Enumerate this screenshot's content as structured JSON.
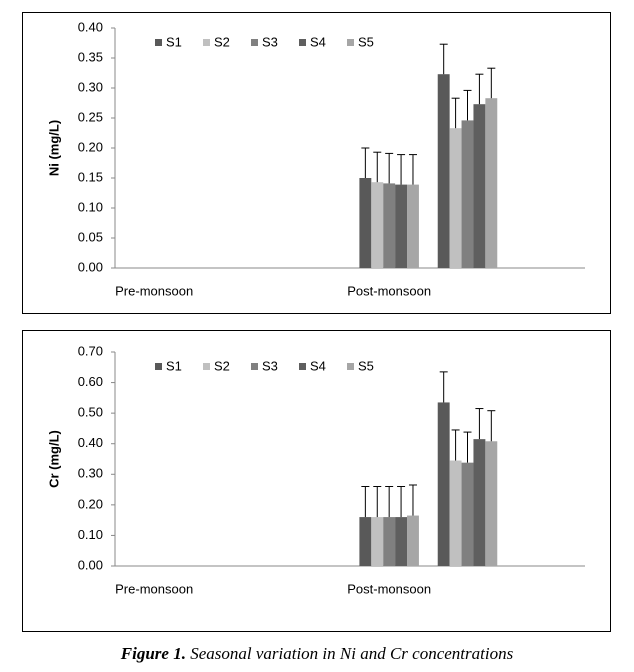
{
  "chart_data": [
    {
      "type": "bar",
      "ylabel": "Ni (mg/L)",
      "categories": [
        "Pre-monsoon",
        null,
        null,
        "Post-monsoon",
        null,
        null
      ],
      "series": [
        {
          "name": "S1",
          "color": "#595959",
          "values": [
            null,
            null,
            null,
            0.15,
            0.323,
            null
          ],
          "errors": [
            null,
            null,
            null,
            0.05,
            0.05,
            null
          ]
        },
        {
          "name": "S2",
          "color": "#c0c0c0",
          "values": [
            null,
            null,
            null,
            0.143,
            0.233,
            null
          ],
          "errors": [
            null,
            null,
            null,
            0.05,
            0.05,
            null
          ]
        },
        {
          "name": "S3",
          "color": "#808080",
          "values": [
            null,
            null,
            null,
            0.141,
            0.246,
            null
          ],
          "errors": [
            null,
            null,
            null,
            0.05,
            0.05,
            null
          ]
        },
        {
          "name": "S4",
          "color": "#5f5f5f",
          "values": [
            null,
            null,
            null,
            0.139,
            0.273,
            null
          ],
          "errors": [
            null,
            null,
            null,
            0.05,
            0.05,
            null
          ]
        },
        {
          "name": "S5",
          "color": "#a6a6a6",
          "values": [
            null,
            null,
            null,
            0.139,
            0.283,
            null
          ],
          "errors": [
            null,
            null,
            null,
            0.05,
            0.05,
            null
          ]
        }
      ],
      "ylim": [
        0,
        0.4
      ],
      "yticks": [
        {
          "value": 0,
          "label": "0.00"
        },
        {
          "value": 0.05,
          "label": "0.05"
        },
        {
          "value": 0.1,
          "label": "0.10"
        },
        {
          "value": 0.15,
          "label": "0.15"
        },
        {
          "value": 0.2,
          "label": "0.20"
        },
        {
          "value": 0.25,
          "label": "0.25"
        },
        {
          "value": 0.3,
          "label": "0.30"
        },
        {
          "value": 0.35,
          "label": "0.35"
        },
        {
          "value": 0.4,
          "label": "0.40"
        }
      ],
      "legend": "upper left",
      "grid": false
    },
    {
      "type": "bar",
      "ylabel": "Cr (mg/L)",
      "categories": [
        "Pre-monsoon",
        null,
        null,
        "Post-monsoon",
        null,
        null
      ],
      "series": [
        {
          "name": "S1",
          "color": "#595959",
          "values": [
            null,
            null,
            null,
            0.16,
            0.535,
            null
          ],
          "errors": [
            null,
            null,
            null,
            0.1,
            0.1,
            null
          ]
        },
        {
          "name": "S2",
          "color": "#c0c0c0",
          "values": [
            null,
            null,
            null,
            0.16,
            0.345,
            null
          ],
          "errors": [
            null,
            null,
            null,
            0.1,
            0.1,
            null
          ]
        },
        {
          "name": "S3",
          "color": "#808080",
          "values": [
            null,
            null,
            null,
            0.16,
            0.338,
            null
          ],
          "errors": [
            null,
            null,
            null,
            0.1,
            0.1,
            null
          ]
        },
        {
          "name": "S4",
          "color": "#5f5f5f",
          "values": [
            null,
            null,
            null,
            0.16,
            0.415,
            null
          ],
          "errors": [
            null,
            null,
            null,
            0.1,
            0.1,
            null
          ]
        },
        {
          "name": "S5",
          "color": "#a6a6a6",
          "values": [
            null,
            null,
            null,
            0.165,
            0.408,
            null
          ],
          "errors": [
            null,
            null,
            null,
            0.1,
            0.1,
            null
          ]
        }
      ],
      "ylim": [
        0,
        0.7
      ],
      "yticks": [
        {
          "value": 0,
          "label": "0.00"
        },
        {
          "value": 0.1,
          "label": "0.10"
        },
        {
          "value": 0.2,
          "label": "0.20"
        },
        {
          "value": 0.3,
          "label": "0.30"
        },
        {
          "value": 0.4,
          "label": "0.40"
        },
        {
          "value": 0.5,
          "label": "0.50"
        },
        {
          "value": 0.6,
          "label": "0.60"
        },
        {
          "value": 0.7,
          "label": "0.70"
        }
      ],
      "legend": "upper left",
      "grid": false
    }
  ],
  "caption": {
    "label": "Figure 1.",
    "text": "Seasonal variation in Ni and Cr concentrations"
  }
}
